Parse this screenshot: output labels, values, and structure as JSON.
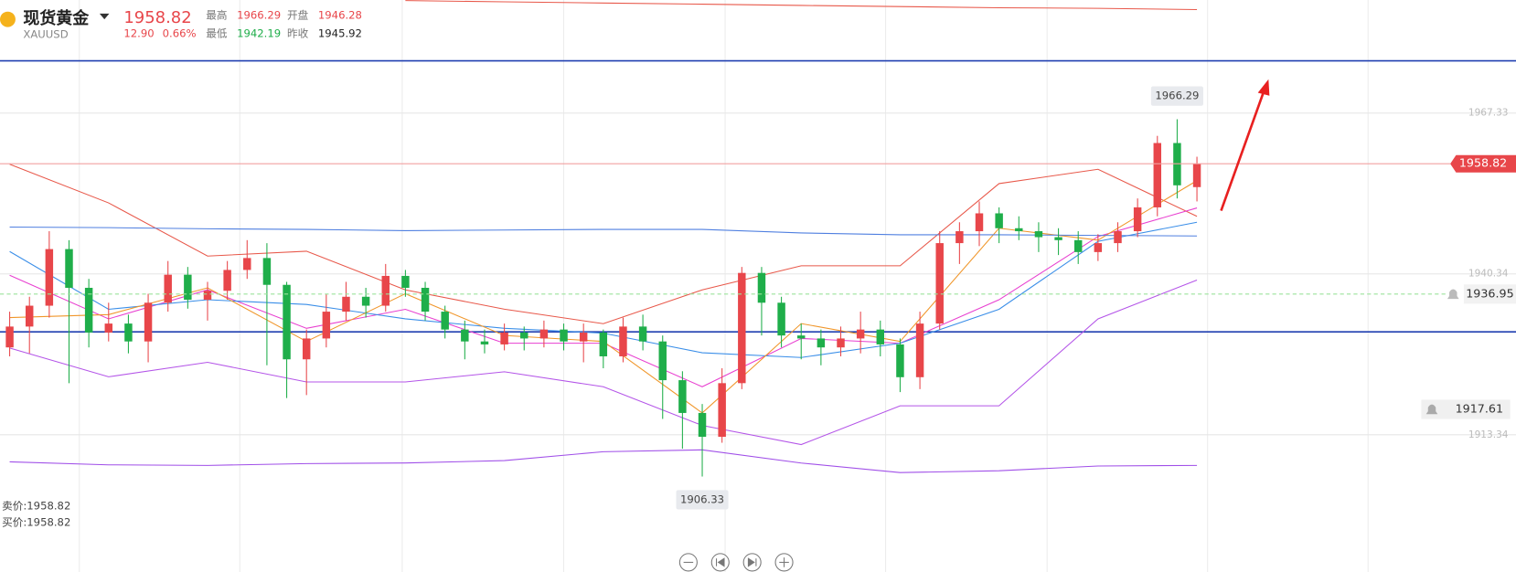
{
  "quote": {
    "name": "现货黄金",
    "symbol": "XAUUSD",
    "price": 1958.82,
    "change": "12.90",
    "change_pct": "0.66%",
    "high_label": "最高",
    "high": 1966.29,
    "open_label": "开盘",
    "open": 1946.28,
    "low_label": "最低",
    "low": 1942.19,
    "prev_close_label": "昨收",
    "prev_close": 1945.92,
    "bid": "卖价:1958.82",
    "ask": "买价:1958.82"
  },
  "chart_data": {
    "type": "candlestick",
    "ylim": [
      1890.31,
      1986.3
    ],
    "yticks": [
      1913.34,
      1940.34,
      1967.33
    ],
    "grid": true,
    "up_color": "#e8464a",
    "down_color": "#1fae4a",
    "candles": {
      "open": [
        1928.0,
        1931.5,
        1935.0,
        1944.5,
        1938.0,
        1930.5,
        1932.0,
        1929.0,
        1935.5,
        1940.2,
        1936.0,
        1937.5,
        1941.0,
        1943.0,
        1938.5,
        1926.0,
        1929.5,
        1934.0,
        1936.5,
        1935.0,
        1940.0,
        1938.0,
        1934.0,
        1931.0,
        1929.0,
        1928.5,
        1930.5,
        1929.5,
        1931.0,
        1929.0,
        1930.5,
        1926.5,
        1931.5,
        1929.0,
        1922.5,
        1917.0,
        1913.0,
        1922.0,
        1940.5,
        1935.5,
        1930.0,
        1929.5,
        1928.0,
        1929.5,
        1931.0,
        1928.5,
        1923.0,
        1932.0,
        1945.5,
        1947.5,
        1950.5,
        1948.0,
        1947.5,
        1946.5,
        1946.0,
        1944.0,
        1945.5,
        1947.5,
        1951.5,
        1962.3,
        1954.9
      ],
      "high": [
        1934.0,
        1936.5,
        1947.5,
        1946.0,
        1939.5,
        1935.5,
        1933.5,
        1937.0,
        1942.5,
        1941.5,
        1939.0,
        1942.5,
        1946.0,
        1945.5,
        1939.0,
        1931.0,
        1937.0,
        1939.0,
        1938.0,
        1942.0,
        1941.0,
        1939.0,
        1935.0,
        1932.5,
        1931.0,
        1932.0,
        1931.5,
        1932.5,
        1932.0,
        1932.0,
        1931.0,
        1933.0,
        1933.5,
        1930.0,
        1924.0,
        1918.5,
        1924.5,
        1941.5,
        1941.5,
        1936.5,
        1932.0,
        1931.0,
        1931.5,
        1934.0,
        1932.5,
        1929.5,
        1934.0,
        1947.5,
        1949.0,
        1952.5,
        1951.5,
        1950.0,
        1949.0,
        1948.0,
        1947.5,
        1947.0,
        1949.0,
        1953.0,
        1963.5,
        1966.29,
        1960.0
      ],
      "low": [
        1926.5,
        1927.0,
        1933.0,
        1922.0,
        1928.0,
        1929.0,
        1927.0,
        1925.5,
        1934.0,
        1934.5,
        1932.5,
        1936.0,
        1939.5,
        1925.0,
        1919.5,
        1920.0,
        1928.0,
        1932.5,
        1933.0,
        1934.0,
        1936.5,
        1932.5,
        1929.5,
        1926.0,
        1927.0,
        1927.5,
        1927.5,
        1928.0,
        1927.5,
        1925.5,
        1924.5,
        1925.5,
        1927.5,
        1916.0,
        1911.0,
        1906.33,
        1912.0,
        1921.0,
        1930.0,
        1928.0,
        1926.0,
        1925.0,
        1926.5,
        1927.0,
        1926.5,
        1920.5,
        1921.0,
        1931.0,
        1942.0,
        1945.0,
        1945.5,
        1946.0,
        1944.0,
        1943.5,
        1942.0,
        1942.5,
        1944.0,
        1946.5,
        1950.0,
        1953.0,
        1952.5
      ],
      "close": [
        1931.5,
        1935.0,
        1944.5,
        1938.0,
        1930.5,
        1932.0,
        1929.0,
        1935.5,
        1940.2,
        1936.0,
        1937.5,
        1941.0,
        1943.0,
        1938.5,
        1926.0,
        1929.5,
        1934.0,
        1936.5,
        1935.0,
        1940.0,
        1938.0,
        1934.0,
        1931.0,
        1929.0,
        1928.5,
        1930.5,
        1929.5,
        1931.0,
        1929.0,
        1930.5,
        1926.5,
        1931.5,
        1929.0,
        1922.5,
        1917.0,
        1913.0,
        1922.0,
        1940.5,
        1935.5,
        1930.0,
        1929.5,
        1928.0,
        1929.5,
        1931.0,
        1928.5,
        1923.0,
        1932.0,
        1945.5,
        1947.5,
        1950.5,
        1948.0,
        1947.5,
        1946.5,
        1946.0,
        1944.0,
        1945.5,
        1947.5,
        1951.5,
        1962.3,
        1955.2,
        1958.82
      ]
    },
    "overlay_x": [
      0,
      5,
      10,
      15,
      20,
      25,
      30,
      35,
      40,
      45,
      50,
      55,
      60
    ],
    "overlays": [
      {
        "color": "#e8584a",
        "values": [
          1958.74,
          1952.25,
          1943.33,
          1944.14,
          1937.65,
          1934.41,
          1931.98,
          1937.65,
          1941.7,
          1941.7,
          1955.5,
          1957.9,
          1950.0
        ]
      },
      {
        "color": "#b455e8",
        "values": [
          1927.9,
          1923.06,
          1925.5,
          1922.2,
          1922.2,
          1923.9,
          1921.4,
          1914.9,
          1911.7,
          1918.2,
          1918.2,
          1932.8,
          1939.3
        ]
      },
      {
        "color": "#e83fd0",
        "values": [
          1940.1,
          1932.8,
          1937.65,
          1931.2,
          1934.4,
          1928.7,
          1928.7,
          1921.4,
          1929.5,
          1928.7,
          1936.0,
          1946.6,
          1951.4
        ]
      },
      {
        "color": "#3a8ee8",
        "values": [
          1944.1,
          1934.4,
          1936.0,
          1935.2,
          1932.8,
          1931.2,
          1930.4,
          1927.1,
          1926.3,
          1928.7,
          1934.4,
          1945.8,
          1949.0
        ]
      },
      {
        "color": "#f0962a",
        "values": [
          1933.0,
          1933.5,
          1938.0,
          1929.0,
          1937.0,
          1930.0,
          1929.0,
          1917.0,
          1932.0,
          1929.0,
          1948.0,
          1946.0,
          1956.0
        ]
      },
      {
        "color": "#4f7fe0",
        "values": [
          1948.2,
          1948.1,
          1947.9,
          1947.8,
          1947.6,
          1947.7,
          1947.8,
          1947.8,
          1947.2,
          1946.9,
          1946.9,
          1946.8,
          1946.7
        ]
      },
      {
        "color": "#a04fe8",
        "values": [
          1908.8,
          1908.3,
          1908.2,
          1908.5,
          1908.6,
          1909.0,
          1910.5,
          1910.8,
          1908.6,
          1907.0,
          1907.3,
          1908.1,
          1908.2
        ]
      },
      {
        "color": "#e8584a",
        "values": [
          null,
          null,
          null,
          null,
          1986.2,
          1986.0,
          1985.8,
          1985.6,
          1985.4,
          1985.2,
          1985.0,
          1984.9,
          1984.7
        ]
      }
    ],
    "hlines": [
      {
        "value": 1976.09,
        "color": "#1f3fb0"
      },
      {
        "value": 1930.61,
        "color": "#1f3fb0"
      }
    ],
    "alerts": [
      1936.95,
      1917.61
    ]
  }
}
